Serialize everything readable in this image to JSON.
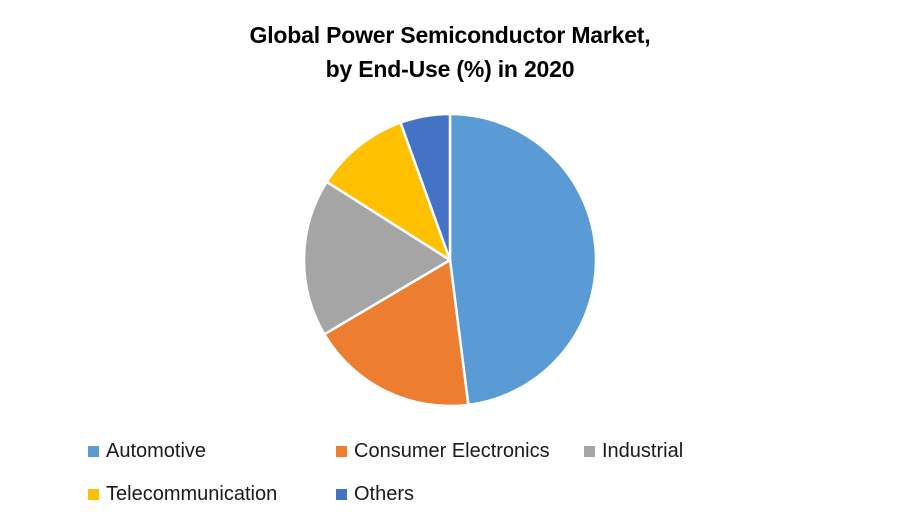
{
  "chart_data": {
    "type": "pie",
    "title": "Global Power Semiconductor Market,",
    "subtitle": "by End-Use (%) in 2020",
    "slices": [
      {
        "label": "Automotive",
        "value": 48,
        "color": "#5B9BD5"
      },
      {
        "label": "Consumer Electronics",
        "value": 18.5,
        "color": "#ED7D31"
      },
      {
        "label": "Industrial",
        "value": 17.5,
        "color": "#A5A5A5"
      },
      {
        "label": "Telecommunication",
        "value": 10.5,
        "color": "#FFC000"
      },
      {
        "label": "Others",
        "value": 5.5,
        "color": "#4472C4"
      }
    ],
    "legend_position": "bottom"
  }
}
